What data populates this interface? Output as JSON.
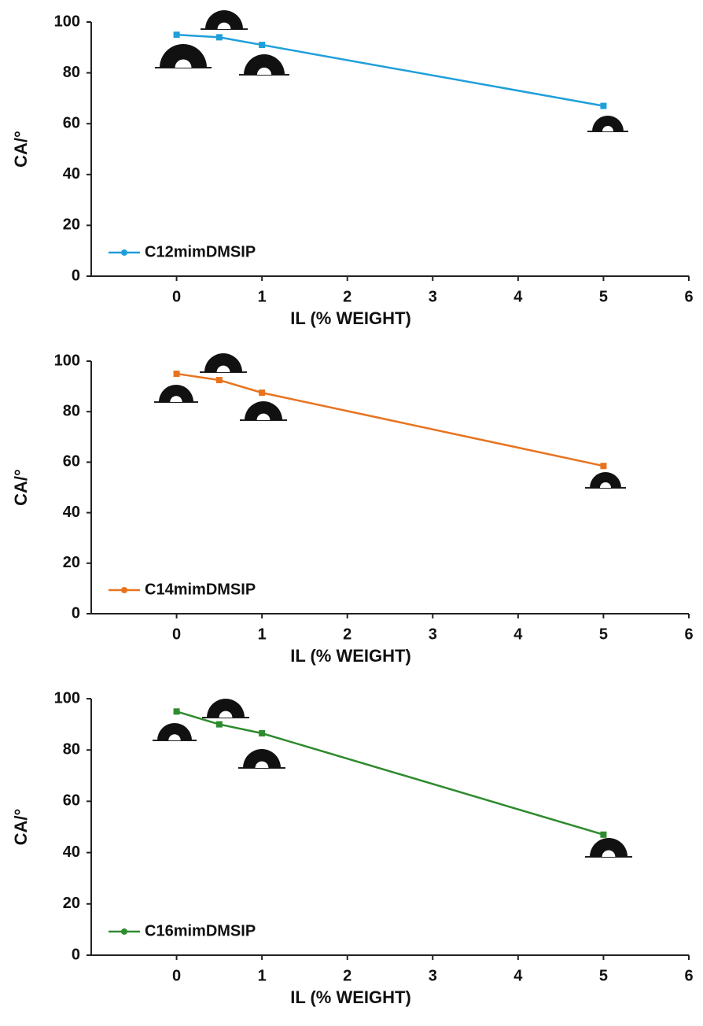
{
  "chart_data": [
    {
      "type": "line",
      "x": [
        0,
        0.5,
        1,
        5
      ],
      "series": [
        {
          "name": "C12mimDMSIP",
          "color": "#1f9fda",
          "values": [
            95,
            94,
            91,
            67
          ]
        }
      ],
      "xlabel": "IL (% WEIGHT)",
      "ylabel": "CA/°",
      "xlim": [
        -1,
        6
      ],
      "ylim": [
        0,
        100
      ],
      "xticks": [
        0,
        1,
        2,
        3,
        4,
        5,
        6
      ],
      "yticks": [
        0,
        20,
        40,
        60,
        80,
        100
      ],
      "legend": "lower left"
    },
    {
      "type": "line",
      "x": [
        0,
        0.5,
        1,
        5
      ],
      "series": [
        {
          "name": "C14mimDMSIP",
          "color": "#e8731f",
          "values": [
            95,
            92.5,
            87.5,
            58.5
          ]
        }
      ],
      "xlabel": "IL (% WEIGHT)",
      "ylabel": "CA/°",
      "xlim": [
        -1,
        6
      ],
      "ylim": [
        0,
        100
      ],
      "xticks": [
        0,
        1,
        2,
        3,
        4,
        5,
        6
      ],
      "yticks": [
        0,
        20,
        40,
        60,
        80,
        100
      ],
      "legend": "lower left"
    },
    {
      "type": "line",
      "x": [
        0,
        0.5,
        1,
        5
      ],
      "series": [
        {
          "name": "C16mimDMSIP",
          "color": "#2e8b2e",
          "values": [
            95,
            90,
            86.5,
            47
          ]
        }
      ],
      "xlabel": "IL (% WEIGHT)",
      "ylabel": "CA/°",
      "xlim": [
        -1,
        6
      ],
      "ylim": [
        0,
        100
      ],
      "xticks": [
        0,
        1,
        2,
        3,
        4,
        5,
        6
      ],
      "yticks": [
        0,
        20,
        40,
        60,
        80,
        100
      ],
      "legend": "lower left"
    }
  ]
}
